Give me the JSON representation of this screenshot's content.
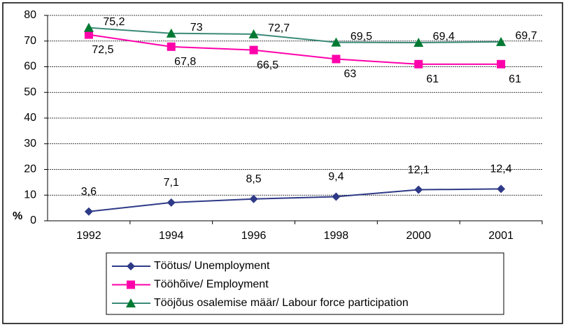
{
  "chart_data": {
    "type": "line",
    "categories": [
      "1992",
      "1994",
      "1996",
      "1998",
      "2000",
      "2001"
    ],
    "y_label": "%",
    "ylim": [
      0,
      80
    ],
    "yticks": [
      0,
      10,
      20,
      30,
      40,
      50,
      60,
      70,
      80
    ],
    "grid": true,
    "series": [
      {
        "name": "Töötus/ Unemployment",
        "color": "#2e3a87",
        "marker": "diamond",
        "values": [
          3.6,
          7.1,
          8.5,
          9.4,
          12.1,
          12.4
        ],
        "value_labels": [
          "3,6",
          "7,1",
          "8,5",
          "9,4",
          "12,1",
          "12,4"
        ]
      },
      {
        "name": "Tööhõive/ Employment",
        "color": "#ff00aa",
        "marker": "square",
        "values": [
          72.5,
          67.8,
          66.5,
          63,
          61,
          61
        ],
        "value_labels": [
          "72,5",
          "67,8",
          "66,5",
          "63",
          "61",
          "61"
        ]
      },
      {
        "name": "Tööjõus osalemise määr/ Labour force participation",
        "color": "#3a8a78",
        "marker_color": "#007a33",
        "marker": "triangle",
        "values": [
          75.2,
          73,
          72.7,
          69.5,
          69.4,
          69.7
        ],
        "value_labels": [
          "75,2",
          "73",
          "72,7",
          "69,5",
          "69,4",
          "69,7"
        ]
      }
    ]
  }
}
